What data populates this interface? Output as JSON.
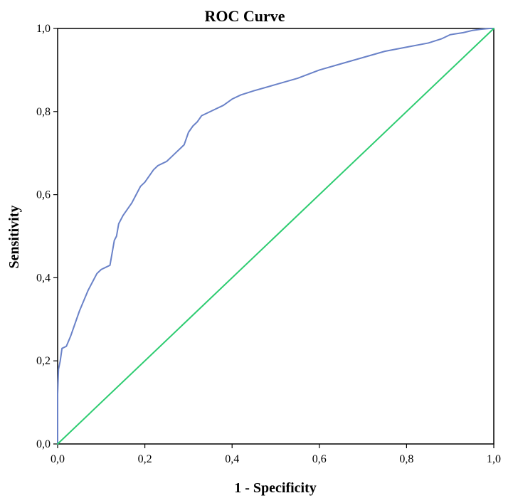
{
  "chart_data": {
    "type": "line",
    "title": "ROC Curve",
    "xlabel": "1 - Specificity",
    "ylabel": "Sensitivity",
    "xlim": [
      0,
      1
    ],
    "ylim": [
      0,
      1
    ],
    "x_ticks": [
      0,
      0.2,
      0.4,
      0.6,
      0.8,
      1.0
    ],
    "y_ticks": [
      0,
      0.2,
      0.4,
      0.6,
      0.8,
      1.0
    ],
    "x_tick_labels": [
      "0,0",
      "0,2",
      "0,4",
      "0,6",
      "0,8",
      "1,0"
    ],
    "y_tick_labels": [
      "0,0",
      "0,2",
      "0,4",
      "0,6",
      "0,8",
      "1,0"
    ],
    "grid": false,
    "series": [
      {
        "color": "#6a82c8",
        "x": [
          0,
          0,
          0.002,
          0.004,
          0.006,
          0.01,
          0.02,
          0.03,
          0.04,
          0.05,
          0.06,
          0.07,
          0.08,
          0.09,
          0.1,
          0.11,
          0.12,
          0.13,
          0.135,
          0.14,
          0.15,
          0.16,
          0.17,
          0.18,
          0.19,
          0.2,
          0.21,
          0.22,
          0.23,
          0.24,
          0.25,
          0.26,
          0.27,
          0.28,
          0.29,
          0.3,
          0.31,
          0.32,
          0.33,
          0.34,
          0.36,
          0.38,
          0.4,
          0.42,
          0.45,
          0.5,
          0.55,
          0.6,
          0.65,
          0.7,
          0.75,
          0.8,
          0.85,
          0.88,
          0.9,
          0.93,
          0.95,
          0.97,
          0.99,
          1.0
        ],
        "y": [
          0,
          0.12,
          0.18,
          0.19,
          0.2,
          0.23,
          0.235,
          0.26,
          0.29,
          0.32,
          0.345,
          0.37,
          0.39,
          0.41,
          0.42,
          0.425,
          0.43,
          0.49,
          0.5,
          0.53,
          0.55,
          0.565,
          0.58,
          0.6,
          0.62,
          0.63,
          0.645,
          0.66,
          0.67,
          0.675,
          0.68,
          0.69,
          0.7,
          0.71,
          0.72,
          0.75,
          0.765,
          0.775,
          0.79,
          0.795,
          0.805,
          0.815,
          0.83,
          0.84,
          0.85,
          0.865,
          0.88,
          0.9,
          0.915,
          0.93,
          0.945,
          0.955,
          0.965,
          0.975,
          0.985,
          0.99,
          0.995,
          0.998,
          1.0,
          1.0
        ]
      },
      {
        "color": "#2ecc71",
        "x": [
          0,
          1
        ],
        "y": [
          0,
          1
        ]
      }
    ]
  }
}
